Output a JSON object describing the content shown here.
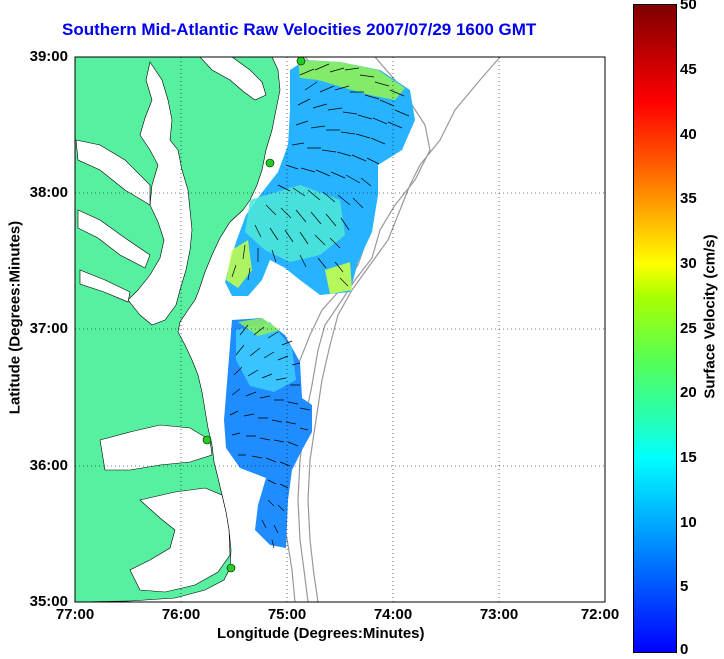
{
  "title": "Southern Mid-Atlantic Raw Velocities 2007/07/29 1600 GMT",
  "axes": {
    "xlabel": "Longitude (Degrees:Minutes)",
    "ylabel": "Latitude (Degrees:Minutes)",
    "xticks": [
      "77:00",
      "76:00",
      "75:00",
      "74:00",
      "73:00",
      "72:00"
    ],
    "yticks": [
      "39:00",
      "38:00",
      "37:00",
      "36:00",
      "35:00"
    ]
  },
  "colorbar": {
    "label": "Surface Velocity (cm/s)",
    "ticks": [
      "50",
      "45",
      "40",
      "35",
      "30",
      "25",
      "20",
      "15",
      "10",
      "5",
      "0"
    ],
    "min": 0,
    "max": 50
  },
  "colors": {
    "land": "#56f0a0",
    "water": "#ffffff",
    "title": "#0000ee",
    "station": "#22cc22",
    "bathymetry": "#999999"
  },
  "chart_data": {
    "type": "map-vector-field",
    "lon_range": [
      -77,
      -72
    ],
    "lat_range": [
      35,
      39
    ],
    "velocity_range_cm_s": [
      0,
      50
    ],
    "stations_lonlat": [
      [
        -74.9,
        38.95
      ],
      [
        -75.15,
        38.25
      ],
      [
        -75.5,
        36.2
      ],
      [
        -75.5,
        35.25
      ]
    ]
  }
}
